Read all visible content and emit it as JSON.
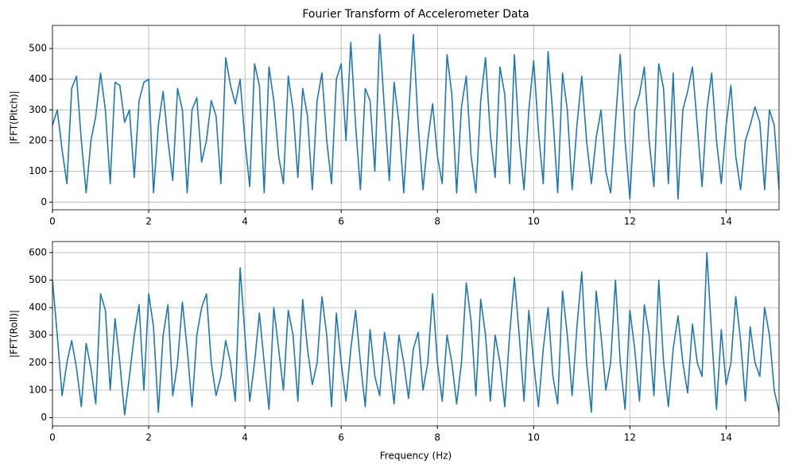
{
  "chart_data": [
    {
      "type": "line",
      "title": "Fourier Transform of Accelerometer Data",
      "ylabel": "|FFT(Pitch)|",
      "color": "#1f77b4",
      "grid": true,
      "xlim": [
        0,
        15.1
      ],
      "xticks": [
        0,
        2,
        4,
        6,
        8,
        10,
        12,
        14
      ],
      "ylim": [
        -25,
        575
      ],
      "yticks": [
        0,
        100,
        200,
        300,
        400,
        500
      ],
      "x": [
        0,
        0.1,
        0.2,
        0.3,
        0.4,
        0.5,
        0.6,
        0.7,
        0.8,
        0.9,
        1,
        1.1,
        1.2,
        1.3,
        1.4,
        1.5,
        1.6,
        1.7,
        1.8,
        1.9,
        2,
        2.1,
        2.2,
        2.3,
        2.4,
        2.5,
        2.6,
        2.7,
        2.8,
        2.9,
        3,
        3.1,
        3.2,
        3.3,
        3.4,
        3.5,
        3.6,
        3.7,
        3.8,
        3.9,
        4,
        4.1,
        4.2,
        4.3,
        4.4,
        4.5,
        4.6,
        4.7,
        4.8,
        4.9,
        5,
        5.1,
        5.2,
        5.3,
        5.4,
        5.5,
        5.6,
        5.7,
        5.8,
        5.9,
        6,
        6.1,
        6.2,
        6.3,
        6.4,
        6.5,
        6.6,
        6.7,
        6.8,
        6.9,
        7,
        7.1,
        7.2,
        7.3,
        7.4,
        7.5,
        7.6,
        7.7,
        7.8,
        7.9,
        8,
        8.1,
        8.2,
        8.3,
        8.4,
        8.5,
        8.6,
        8.7,
        8.8,
        8.9,
        9,
        9.1,
        9.2,
        9.3,
        9.4,
        9.5,
        9.6,
        9.7,
        9.8,
        9.9,
        10,
        10.1,
        10.2,
        10.3,
        10.4,
        10.5,
        10.6,
        10.7,
        10.8,
        10.9,
        11,
        11.1,
        11.2,
        11.3,
        11.4,
        11.5,
        11.6,
        11.7,
        11.8,
        11.9,
        12,
        12.1,
        12.2,
        12.3,
        12.4,
        12.5,
        12.6,
        12.7,
        12.8,
        12.9,
        13,
        13.1,
        13.2,
        13.3,
        13.4,
        13.5,
        13.6,
        13.7,
        13.8,
        13.9,
        14,
        14.1,
        14.2,
        14.3,
        14.4,
        14.5,
        14.6,
        14.7,
        14.8,
        14.9,
        15,
        15.1
      ],
      "values": [
        250,
        300,
        170,
        60,
        370,
        410,
        200,
        30,
        200,
        280,
        420,
        300,
        60,
        390,
        380,
        260,
        300,
        80,
        330,
        390,
        400,
        30,
        250,
        360,
        200,
        70,
        370,
        300,
        30,
        300,
        340,
        130,
        200,
        330,
        280,
        60,
        470,
        380,
        320,
        400,
        200,
        50,
        450,
        380,
        30,
        440,
        330,
        150,
        60,
        410,
        300,
        80,
        370,
        280,
        40,
        330,
        420,
        200,
        60,
        400,
        450,
        200,
        520,
        250,
        40,
        370,
        330,
        100,
        545,
        300,
        70,
        390,
        260,
        30,
        280,
        545,
        250,
        40,
        200,
        320,
        150,
        60,
        480,
        350,
        30,
        310,
        410,
        150,
        30,
        330,
        470,
        220,
        80,
        440,
        350,
        60,
        480,
        200,
        40,
        300,
        460,
        230,
        60,
        490,
        280,
        30,
        420,
        300,
        40,
        250,
        410,
        200,
        60,
        210,
        300,
        100,
        30,
        260,
        480,
        200,
        10,
        300,
        350,
        440,
        200,
        50,
        450,
        370,
        60,
        420,
        10,
        300,
        360,
        440,
        250,
        50,
        300,
        420,
        200,
        60,
        250,
        380,
        150,
        40,
        200,
        250,
        310,
        260,
        40,
        300,
        250,
        40
      ]
    },
    {
      "type": "line",
      "ylabel": "|FFT(Roll)|",
      "xlabel": "Frequency (Hz)",
      "color": "#1f77b4",
      "grid": true,
      "xlim": [
        0,
        15.1
      ],
      "xticks": [
        0,
        2,
        4,
        6,
        8,
        10,
        12,
        14
      ],
      "ylim": [
        -30,
        640
      ],
      "yticks": [
        0,
        100,
        200,
        300,
        400,
        500,
        600
      ],
      "x": [
        0,
        0.1,
        0.2,
        0.3,
        0.4,
        0.5,
        0.6,
        0.7,
        0.8,
        0.9,
        1,
        1.1,
        1.2,
        1.3,
        1.4,
        1.5,
        1.6,
        1.7,
        1.8,
        1.9,
        2,
        2.1,
        2.2,
        2.3,
        2.4,
        2.5,
        2.6,
        2.7,
        2.8,
        2.9,
        3,
        3.1,
        3.2,
        3.3,
        3.4,
        3.5,
        3.6,
        3.7,
        3.8,
        3.9,
        4,
        4.1,
        4.2,
        4.3,
        4.4,
        4.5,
        4.6,
        4.7,
        4.8,
        4.9,
        5,
        5.1,
        5.2,
        5.3,
        5.4,
        5.5,
        5.6,
        5.7,
        5.8,
        5.9,
        6,
        6.1,
        6.2,
        6.3,
        6.4,
        6.5,
        6.6,
        6.7,
        6.8,
        6.9,
        7,
        7.1,
        7.2,
        7.3,
        7.4,
        7.5,
        7.6,
        7.7,
        7.8,
        7.9,
        8,
        8.1,
        8.2,
        8.3,
        8.4,
        8.5,
        8.6,
        8.7,
        8.8,
        8.9,
        9,
        9.1,
        9.2,
        9.3,
        9.4,
        9.5,
        9.6,
        9.7,
        9.8,
        9.9,
        10,
        10.1,
        10.2,
        10.3,
        10.4,
        10.5,
        10.6,
        10.7,
        10.8,
        10.9,
        11,
        11.1,
        11.2,
        11.3,
        11.4,
        11.5,
        11.6,
        11.7,
        11.8,
        11.9,
        12,
        12.1,
        12.2,
        12.3,
        12.4,
        12.5,
        12.6,
        12.7,
        12.8,
        12.9,
        13,
        13.1,
        13.2,
        13.3,
        13.4,
        13.5,
        13.6,
        13.7,
        13.8,
        13.9,
        14,
        14.1,
        14.2,
        14.3,
        14.4,
        14.5,
        14.6,
        14.7,
        14.8,
        14.9,
        15,
        15.1
      ],
      "values": [
        500,
        300,
        80,
        200,
        280,
        180,
        40,
        270,
        180,
        50,
        450,
        390,
        100,
        360,
        200,
        10,
        150,
        300,
        410,
        100,
        450,
        330,
        20,
        300,
        410,
        80,
        200,
        420,
        250,
        40,
        300,
        400,
        450,
        200,
        80,
        150,
        280,
        200,
        60,
        545,
        300,
        60,
        200,
        380,
        200,
        30,
        400,
        250,
        100,
        390,
        300,
        60,
        430,
        250,
        120,
        200,
        440,
        300,
        40,
        380,
        200,
        60,
        250,
        390,
        200,
        40,
        320,
        150,
        80,
        310,
        200,
        50,
        300,
        200,
        70,
        250,
        310,
        100,
        200,
        450,
        200,
        60,
        300,
        200,
        50,
        200,
        490,
        350,
        80,
        430,
        300,
        60,
        300,
        200,
        40,
        300,
        510,
        300,
        60,
        390,
        200,
        40,
        250,
        400,
        150,
        50,
        460,
        300,
        80,
        330,
        530,
        200,
        20,
        460,
        300,
        100,
        200,
        500,
        200,
        30,
        390,
        250,
        60,
        410,
        300,
        80,
        500,
        200,
        40,
        250,
        370,
        200,
        90,
        340,
        200,
        150,
        600,
        300,
        30,
        320,
        120,
        200,
        440,
        280,
        60,
        330,
        200,
        150,
        400,
        300,
        100,
        20
      ]
    }
  ]
}
